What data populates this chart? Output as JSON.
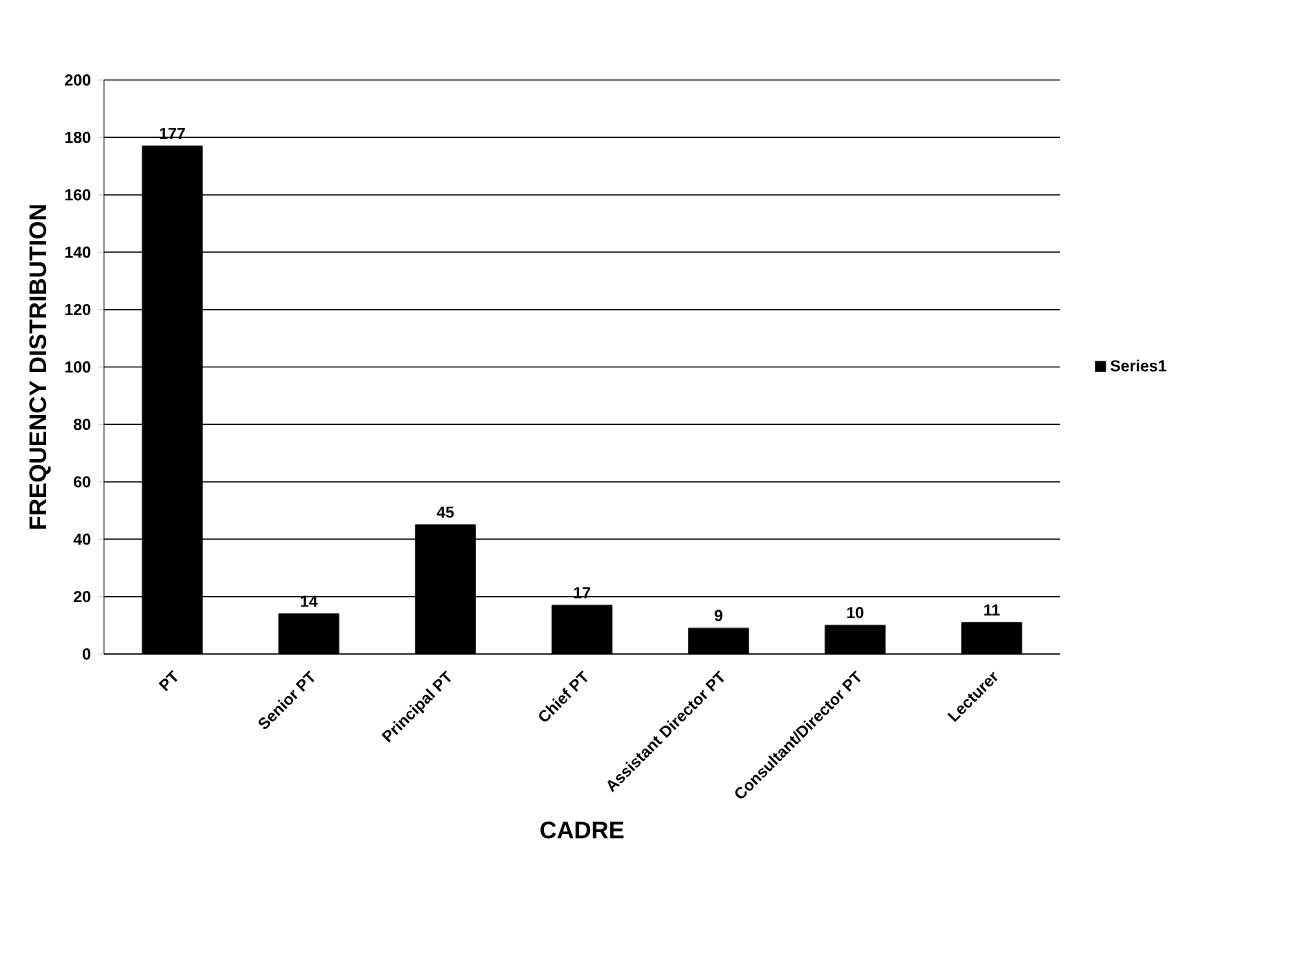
{
  "chart_data": {
    "type": "bar",
    "xlabel": "CADRE",
    "ylabel": "FREQUENCY DISTRIBUTION",
    "categories": [
      "PT",
      "Senior PT",
      "Principal PT",
      "Chief PT",
      "Assistant Director PT",
      "Consultant/Director PT",
      "Lecturer"
    ],
    "series": [
      {
        "name": "Series1",
        "color": "#000000",
        "values": [
          177,
          14,
          45,
          17,
          9,
          10,
          11
        ]
      }
    ],
    "ylim": [
      0,
      200
    ],
    "yticks": [
      0,
      20,
      40,
      60,
      80,
      100,
      120,
      140,
      160,
      180,
      200
    ],
    "grid": "y",
    "legend": "right",
    "data_labels": true
  }
}
